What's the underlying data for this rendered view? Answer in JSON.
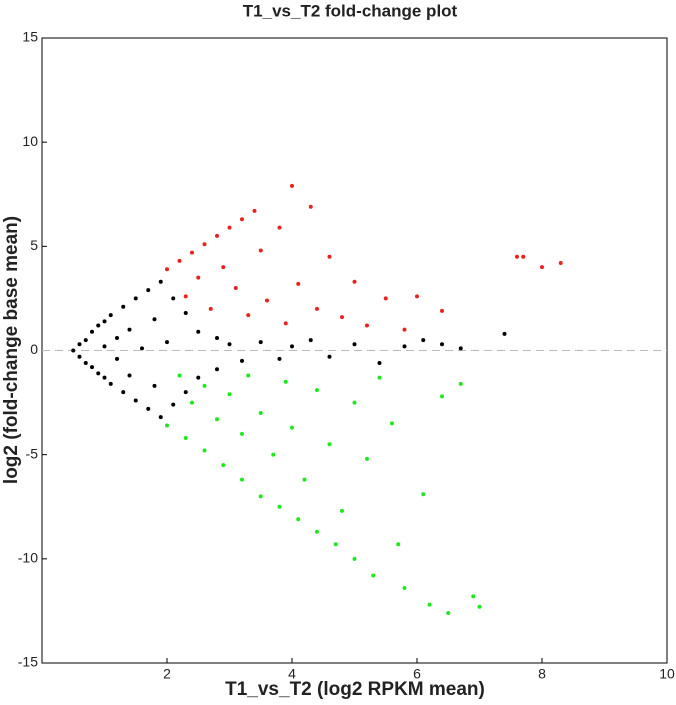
{
  "chart_data": {
    "type": "scatter",
    "title": "T1_vs_T2 fold-change plot",
    "x_label": "T1_vs_T2 (log2 RPKM mean)",
    "y_label": "log2 (fold-change base mean)",
    "xlim": [
      0,
      10
    ],
    "ylim": [
      -15,
      15
    ],
    "xticks": [
      2,
      4,
      6,
      8,
      10
    ],
    "yticks": [
      -15,
      -10,
      -5,
      0,
      5,
      10,
      15
    ],
    "reference_line": 0,
    "series": [
      {
        "color": "#000000",
        "x": [
          0.5,
          0.6,
          0.6,
          0.7,
          0.7,
          0.8,
          0.8,
          0.9,
          0.9,
          1.0,
          1.0,
          1.0,
          1.1,
          1.1,
          1.2,
          1.2,
          1.3,
          1.3,
          1.4,
          1.4,
          1.5,
          1.5,
          1.6,
          1.7,
          1.7,
          1.8,
          1.8,
          1.9,
          1.9,
          2.0,
          2.1,
          2.1,
          2.3,
          2.3,
          2.5,
          2.5,
          2.8,
          2.8,
          3.0,
          3.2,
          3.5,
          3.8,
          4.0,
          4.3,
          4.6,
          5.0,
          5.4,
          5.8,
          6.1,
          6.4,
          6.7,
          7.4
        ],
        "values": [
          0,
          0.3,
          -0.3,
          0.5,
          -0.6,
          0.9,
          -0.8,
          1.2,
          -1.1,
          1.4,
          -1.3,
          0.2,
          1.7,
          -1.6,
          0.6,
          -0.4,
          2.1,
          -2.0,
          1.0,
          -1.2,
          2.5,
          -2.4,
          0.1,
          2.9,
          -2.8,
          1.5,
          -1.7,
          3.3,
          -3.2,
          0.4,
          2.5,
          -2.6,
          1.8,
          -2.0,
          0.9,
          -1.3,
          0.6,
          -0.9,
          0.3,
          -0.5,
          0.4,
          -0.4,
          0.2,
          0.5,
          -0.3,
          0.3,
          -0.6,
          0.2,
          0.5,
          0.3,
          0.1,
          0.8
        ]
      },
      {
        "color": "#e8231f",
        "x": [
          2.0,
          2.2,
          2.4,
          2.6,
          2.8,
          3.0,
          3.2,
          3.4,
          2.3,
          2.5,
          2.7,
          2.9,
          3.1,
          3.3,
          3.5,
          3.6,
          3.8,
          3.9,
          4.0,
          4.1,
          4.3,
          4.4,
          4.6,
          4.8,
          5.0,
          5.2,
          5.5,
          5.8,
          6.0,
          6.4,
          7.6,
          7.7,
          8.0,
          8.3
        ],
        "values": [
          3.9,
          4.3,
          4.7,
          5.1,
          5.5,
          5.9,
          6.3,
          6.7,
          2.6,
          3.5,
          2.0,
          4.0,
          3.0,
          1.7,
          4.8,
          2.4,
          5.9,
          1.3,
          7.9,
          3.2,
          6.9,
          2.0,
          4.5,
          1.6,
          3.3,
          1.2,
          2.5,
          1.0,
          2.6,
          1.9,
          4.5,
          4.5,
          4.0,
          4.2
        ]
      },
      {
        "color": "#1ee81e",
        "x": [
          2.0,
          2.3,
          2.6,
          2.9,
          3.2,
          3.5,
          3.8,
          4.1,
          4.4,
          4.7,
          5.0,
          2.2,
          2.4,
          2.6,
          2.8,
          3.0,
          3.2,
          3.3,
          3.5,
          3.7,
          3.9,
          4.0,
          4.2,
          4.4,
          4.6,
          4.8,
          5.0,
          5.2,
          5.4,
          5.6,
          5.7,
          6.1,
          6.4,
          6.7,
          5.3,
          5.8,
          6.2,
          6.5,
          6.9,
          7.0
        ],
        "values": [
          -3.6,
          -4.2,
          -4.8,
          -5.5,
          -6.2,
          -7.0,
          -7.5,
          -8.1,
          -8.7,
          -9.3,
          -10.0,
          -1.2,
          -2.5,
          -1.7,
          -3.3,
          -2.1,
          -4.0,
          -1.2,
          -3.0,
          -5.0,
          -1.5,
          -3.7,
          -6.2,
          -1.9,
          -4.5,
          -7.7,
          -2.5,
          -5.2,
          -1.3,
          -3.5,
          -9.3,
          -6.9,
          -2.2,
          -1.6,
          -10.8,
          -11.4,
          -12.2,
          -12.6,
          -11.8,
          -12.3
        ]
      }
    ]
  }
}
